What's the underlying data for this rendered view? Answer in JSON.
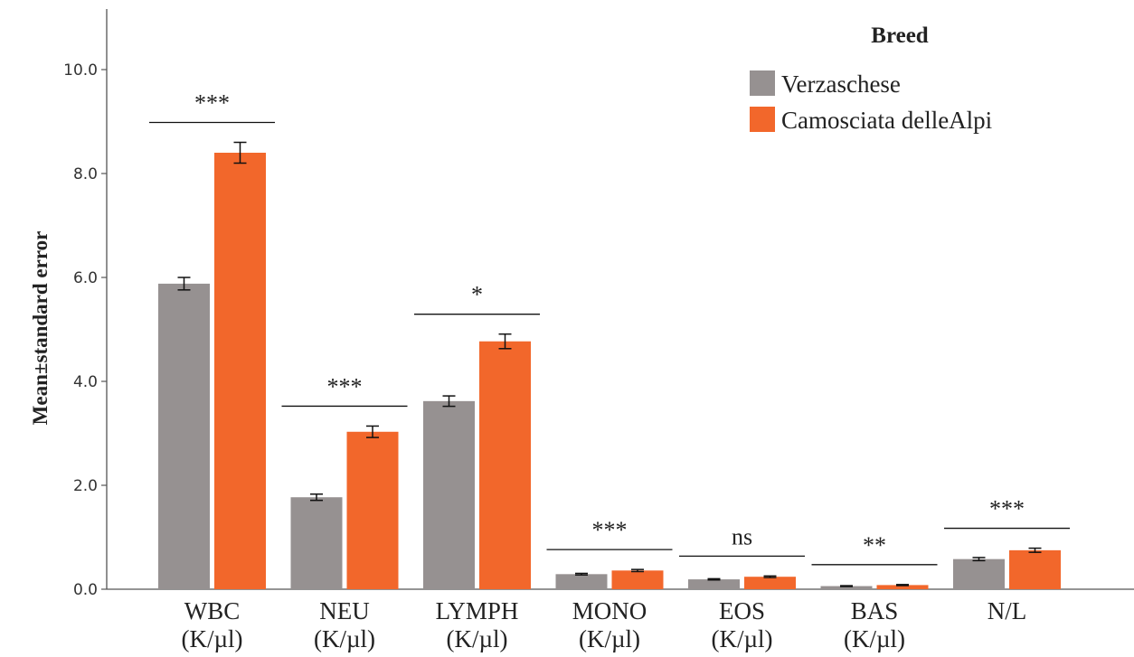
{
  "chart_data": {
    "type": "bar",
    "ylabel": "Mean±standard error",
    "ylim": [
      0,
      11
    ],
    "yticks": [
      "0.0",
      "2.0",
      "4.0",
      "6.0",
      "8.0",
      "10.0"
    ],
    "grid": false,
    "legend": {
      "title": "Breed",
      "placement": "top-right"
    },
    "categories": [
      [
        "WBC",
        "(K/µl)"
      ],
      [
        "NEU",
        "(K/µl)"
      ],
      [
        "LYMPH",
        "(K/µl)"
      ],
      [
        "MONO",
        "(K/µl)"
      ],
      [
        "EOS",
        "(K/µl)"
      ],
      [
        "BAS",
        "(K/µl)"
      ],
      [
        "N/L",
        ""
      ]
    ],
    "series": [
      {
        "name": "Verzaschese",
        "color": "#969191",
        "values": [
          5.88,
          1.77,
          3.62,
          0.29,
          0.19,
          0.06,
          0.58
        ],
        "errors": [
          0.12,
          0.06,
          0.1,
          0.015,
          0.012,
          0.008,
          0.03
        ]
      },
      {
        "name": "Camosciata delleAlpi",
        "color": "#f2672b",
        "values": [
          8.4,
          3.03,
          4.77,
          0.36,
          0.24,
          0.08,
          0.75
        ],
        "errors": [
          0.2,
          0.11,
          0.14,
          0.02,
          0.015,
          0.01,
          0.04
        ]
      }
    ],
    "significance": [
      "***",
      "***",
      "*",
      "***",
      "ns",
      "**",
      "***"
    ]
  }
}
